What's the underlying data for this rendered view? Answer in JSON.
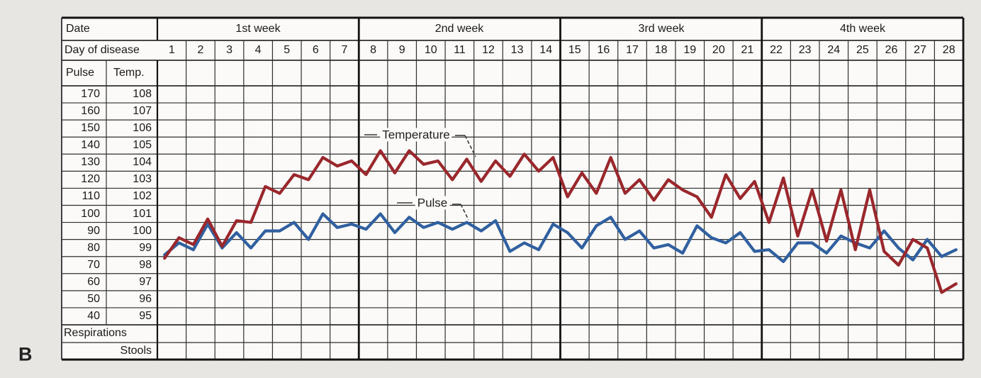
{
  "figure_label": "B",
  "colors": {
    "temperature": "#9a272b",
    "pulse": "#30609f",
    "grid": "#2f2f2f",
    "grid_heavy": "#131313",
    "paper": "#fbfaf8",
    "background": "#e8e6e3",
    "text": "#1a1a1a",
    "annotation_line": "#3a3a3a"
  },
  "table": {
    "date_label": "Date",
    "day_of_disease_label": "Day of disease",
    "week_labels": [
      "1st week",
      "2nd week",
      "3rd week",
      "4th week"
    ],
    "day_numbers": [
      1,
      2,
      3,
      4,
      5,
      6,
      7,
      8,
      9,
      10,
      11,
      12,
      13,
      14,
      15,
      16,
      17,
      18,
      19,
      20,
      21,
      22,
      23,
      24,
      25,
      26,
      27,
      28
    ],
    "pulse_header": "Pulse",
    "temp_header": "Temp.",
    "pulse_scale": [
      170,
      160,
      150,
      140,
      130,
      120,
      110,
      100,
      90,
      80,
      70,
      60,
      50,
      40
    ],
    "temp_scale": [
      108,
      107,
      106,
      105,
      104,
      103,
      102,
      101,
      100,
      99,
      98,
      97,
      96,
      95
    ],
    "respirations_label": "Respirations",
    "stools_label": "Stools"
  },
  "annotations": {
    "temperature_label": "Temperature",
    "pulse_label": "Pulse"
  },
  "chart_data": {
    "type": "line",
    "title": "Clinical fever chart: temperature and pulse over 28 days of disease",
    "x_unit": "two readings per day (morning / evening)",
    "days": [
      1,
      2,
      3,
      4,
      5,
      6,
      7,
      8,
      9,
      10,
      11,
      12,
      13,
      14,
      15,
      16,
      17,
      18,
      19,
      20,
      21,
      22,
      23,
      24,
      25,
      26,
      27,
      28
    ],
    "week_spans": {
      "1st week": [
        1,
        7
      ],
      "2nd week": [
        8,
        14
      ],
      "3rd week": [
        15,
        21
      ],
      "4th week": [
        22,
        28
      ]
    },
    "temp_axis": {
      "label": "Temp.",
      "min": 95,
      "max": 108,
      "unit": "F"
    },
    "pulse_axis": {
      "label": "Pulse",
      "min": 40,
      "max": 170,
      "unit": "beats/min"
    },
    "grid": true,
    "series": [
      {
        "name": "Temperature",
        "color": "#9a272b",
        "axis": "temp",
        "values": [
          98.4,
          99.6,
          99.2,
          100.7,
          99.1,
          100.6,
          100.5,
          102.6,
          102.2,
          103.3,
          103.0,
          104.3,
          103.8,
          104.1,
          103.3,
          104.7,
          103.4,
          104.7,
          103.9,
          104.1,
          103.0,
          104.2,
          102.9,
          104.1,
          103.2,
          104.5,
          103.5,
          104.3,
          102.0,
          103.4,
          102.2,
          104.3,
          102.2,
          103.0,
          101.8,
          103.0,
          102.4,
          102.0,
          100.8,
          103.3,
          101.9,
          102.9,
          100.5,
          103.1,
          99.7,
          102.4,
          99.4,
          102.4,
          98.9,
          102.4,
          98.8,
          98.0,
          99.5,
          99.0,
          96.4,
          96.9
        ]
      },
      {
        "name": "Pulse",
        "color": "#30609f",
        "axis": "pulse",
        "values": [
          76,
          83,
          79,
          94,
          80,
          89,
          80,
          90,
          90,
          95,
          85,
          100,
          92,
          94,
          91,
          100,
          89,
          98,
          92,
          95,
          91,
          95,
          90,
          96,
          78,
          83,
          79,
          94,
          89,
          80,
          93,
          98,
          85,
          90,
          80,
          82,
          77,
          93,
          86,
          83,
          89,
          78,
          79,
          72,
          83,
          83,
          77,
          87,
          83,
          80,
          90,
          80,
          73,
          85,
          75,
          79
        ]
      }
    ]
  }
}
